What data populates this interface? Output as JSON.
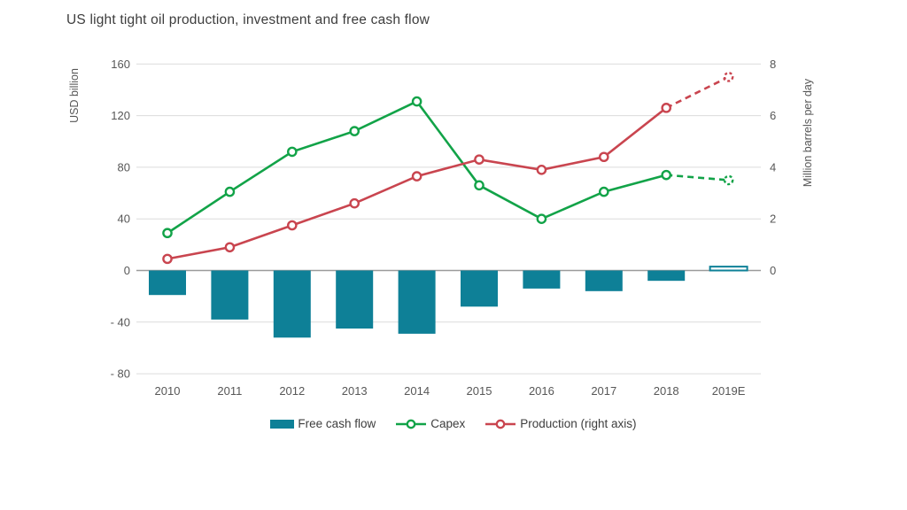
{
  "title": "US light tight oil production, investment and free cash flow",
  "colors": {
    "free_cash_flow": "#0e8097",
    "capex": "#12a348",
    "production": "#c9454f",
    "grid_line": "#dcdcdc",
    "zero_line": "#9b9b9b",
    "text": "#3d3d3d",
    "axis_text": "#575757"
  },
  "chart_data": {
    "type": "combo-bar-line",
    "title": "US light tight oil production, investment and free cash flow",
    "categories": [
      "2010",
      "2011",
      "2012",
      "2013",
      "2014",
      "2015",
      "2016",
      "2017",
      "2018",
      "2019E"
    ],
    "series": [
      {
        "name": "Free cash flow",
        "type": "bar",
        "axis": "left",
        "color_key": "free_cash_flow",
        "values": [
          -19,
          -38,
          -52,
          -45,
          -49,
          -28,
          -14,
          -16,
          -8,
          3
        ],
        "hollow_categories": [
          "2019E"
        ],
        "note": "2019E bar drawn as hollow outline (estimate)"
      },
      {
        "name": "Capex",
        "type": "line",
        "axis": "left",
        "color_key": "capex",
        "values": [
          29,
          61,
          92,
          108,
          131,
          66,
          40,
          61,
          74,
          70
        ],
        "dashed_from_category": "2018"
      },
      {
        "name": "Production (right axis)",
        "type": "line",
        "axis": "right",
        "color_key": "production",
        "values": [
          0.45,
          0.9,
          1.75,
          2.6,
          3.65,
          4.3,
          3.9,
          4.4,
          6.3,
          7.5
        ],
        "dashed_from_category": "2018"
      }
    ],
    "left_axis": {
      "label": "USD billion",
      "range": [
        -80,
        160
      ],
      "ticks": [
        {
          "value": 160,
          "label": "160"
        },
        {
          "value": 120,
          "label": "120"
        },
        {
          "value": 80,
          "label": "80"
        },
        {
          "value": 40,
          "label": "40"
        },
        {
          "value": 0,
          "label": "0"
        },
        {
          "value": -40,
          "label": "- 40"
        },
        {
          "value": -80,
          "label": "- 80"
        }
      ]
    },
    "right_axis": {
      "label": "Million barrels per day",
      "range": [
        -4,
        8
      ],
      "ticks": [
        {
          "value": 8,
          "label": "8"
        },
        {
          "value": 6,
          "label": "6"
        },
        {
          "value": 4,
          "label": "4"
        },
        {
          "value": 2,
          "label": "2"
        },
        {
          "value": 0,
          "label": "0"
        }
      ]
    },
    "grid": "horizontal-only",
    "legend_position": "bottom-center"
  }
}
